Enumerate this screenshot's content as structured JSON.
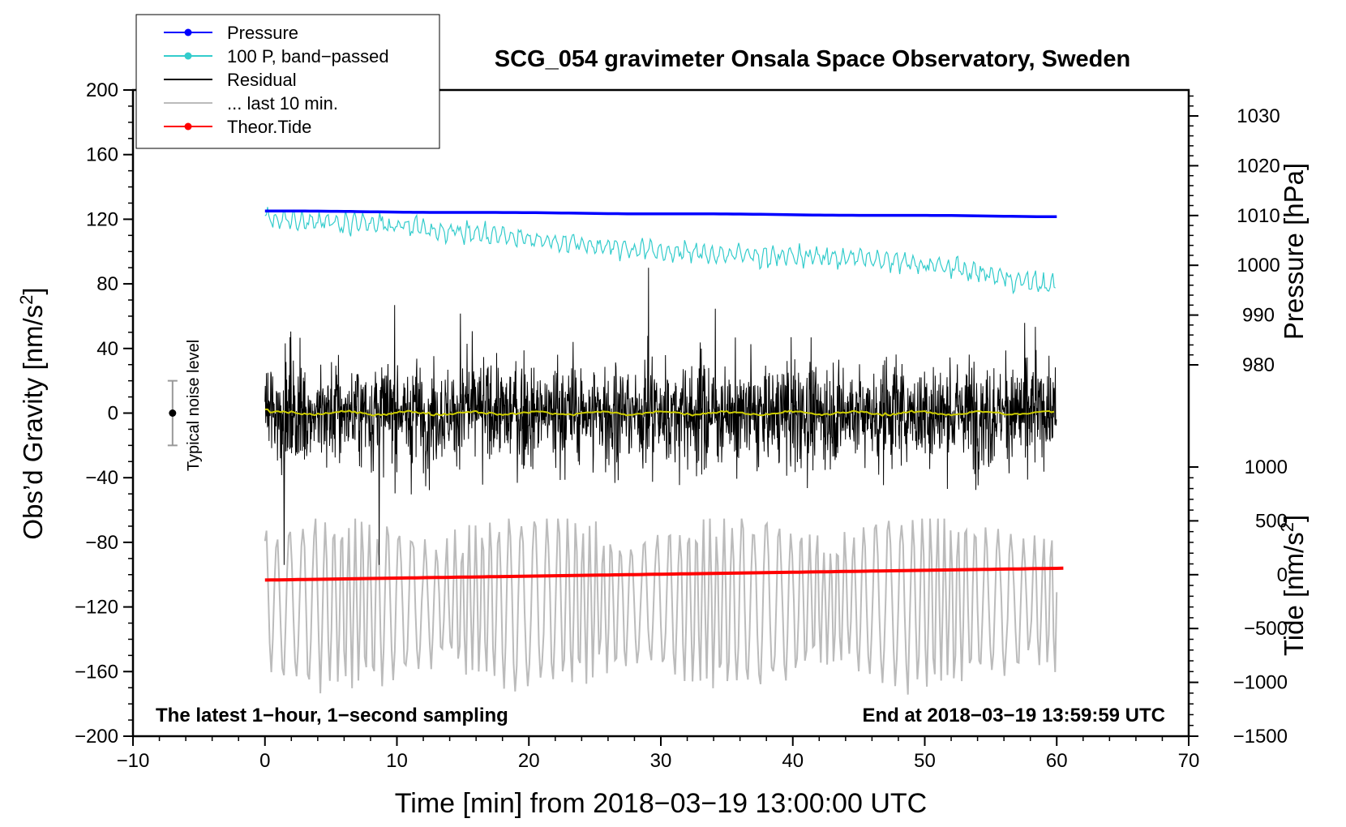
{
  "chart_data": {
    "type": "line",
    "title": "SCG_054 gravimeter Onsala Space Observatory, Sweden",
    "xlabel": "Time [min] from 2018−03−19 13:00:00 UTC",
    "ylabel": "Obs’d Gravity [nm/s²]",
    "ylabel_parts": {
      "before": "Obs’d Gravity [nm/s",
      "sup": "2",
      "after": "]"
    },
    "xlim": [
      -10,
      70
    ],
    "ylim": [
      -200,
      200
    ],
    "x_ticks": [
      "−10",
      "0",
      "10",
      "20",
      "30",
      "40",
      "50",
      "60",
      "70"
    ],
    "y_ticks": [
      "−200",
      "−160",
      "−120",
      "−80",
      "−40",
      "0",
      "40",
      "80",
      "120",
      "160",
      "200"
    ],
    "pressure_axis": {
      "label": "Pressure [hPa]",
      "ylim": [
        965,
        1034
      ],
      "ticks": [
        "1030",
        "1020",
        "1010",
        "1000",
        "990",
        "980"
      ],
      "tick_values": [
        1030,
        1020,
        1010,
        1000,
        990,
        980
      ]
    },
    "tide_axis": {
      "label": "Tide [nm/s²]",
      "label_parts": {
        "before": "Tide [nm/s",
        "sup": "2",
        "after": "]"
      },
      "ylim": [
        -1500,
        1000
      ],
      "ticks": [
        "1000",
        "500",
        "0",
        "−500",
        "−1000",
        "−1500"
      ],
      "tick_values": [
        1000,
        500,
        0,
        -500,
        -1000,
        -1500
      ]
    },
    "legend": [
      {
        "label": "Pressure",
        "color": "#0000ff",
        "marker": true
      },
      {
        "label": "100 P, band−passed",
        "color": "#33cccc",
        "marker": true
      },
      {
        "label": "Residual",
        "color": "#000000",
        "marker": false
      },
      {
        "label": "... last 10 min.",
        "color": "#bbbbbb",
        "marker": false
      },
      {
        "label": "Theor.Tide",
        "color": "#ff0000",
        "marker": true
      }
    ],
    "legend_position": "top-left",
    "noise_label": "Typical noise level",
    "noise_level": {
      "x": -7,
      "center": 0,
      "low": -20,
      "high": 20
    },
    "annotation_left": "The latest 1−hour, 1−second sampling",
    "annotation_right": "End at 2018−03−19 13:59:59 UTC",
    "series": [
      {
        "name": "Pressure",
        "axis": "pressure",
        "color": "#0000ff",
        "start": 1010.9,
        "end": 1009.8,
        "x_range": [
          0,
          60
        ]
      },
      {
        "name": "100 P, band−passed",
        "axis": "gravity",
        "color": "#33cccc",
        "trend": [
          [
            0,
            121
          ],
          [
            10,
            116
          ],
          [
            20,
            108
          ],
          [
            30,
            100
          ],
          [
            36,
            98
          ],
          [
            45,
            96
          ],
          [
            52,
            90
          ],
          [
            60,
            78
          ]
        ],
        "amplitude": 7
      },
      {
        "name": "Residual",
        "axis": "gravity",
        "color": "#000000",
        "center": 0,
        "typical_range": [
          -50,
          50
        ],
        "extremes": [
          90,
          -94
        ]
      },
      {
        "name": "... last 10 min.",
        "axis": "tide",
        "color": "#bbbbbb",
        "typical_range": [
          -900,
          500
        ],
        "extremes": [
          450,
          -1250
        ]
      },
      {
        "name": "Theor.Tide",
        "axis": "tide",
        "color": "#ff0000",
        "start": -50,
        "end": 60,
        "x_range": [
          0,
          60.5
        ]
      },
      {
        "name": "Residual smoothed",
        "axis": "gravity",
        "color": "#cccc00",
        "center": 0
      }
    ],
    "colors": {
      "frame": "#000000",
      "background": "#ffffff"
    }
  }
}
